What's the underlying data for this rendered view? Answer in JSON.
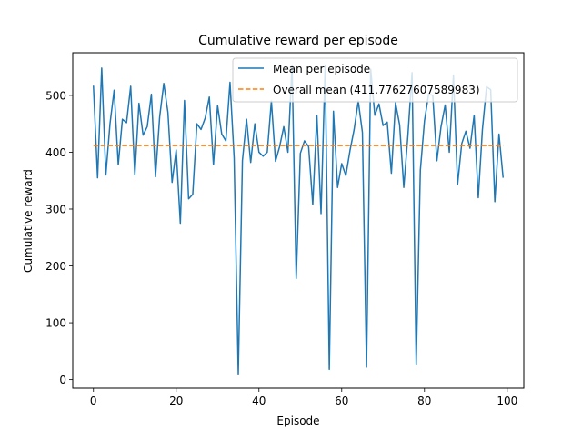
{
  "chart_data": {
    "type": "line",
    "title": "Cumulative reward per episode",
    "xlabel": "Episode",
    "ylabel": "Cumulative reward",
    "xlim": [
      -5,
      104
    ],
    "ylim": [
      -15,
      575
    ],
    "xticks": [
      0,
      20,
      40,
      60,
      80,
      100
    ],
    "yticks": [
      0,
      100,
      200,
      300,
      400,
      500
    ],
    "grid": false,
    "legend_position": "upper-right",
    "series": [
      {
        "name": "Mean per episode",
        "color": "#1f77b4",
        "style": "solid",
        "x": [
          0,
          1,
          2,
          3,
          4,
          5,
          6,
          7,
          8,
          9,
          10,
          11,
          12,
          13,
          14,
          15,
          16,
          17,
          18,
          19,
          20,
          21,
          22,
          23,
          24,
          25,
          26,
          27,
          28,
          29,
          30,
          31,
          32,
          33,
          34,
          35,
          36,
          37,
          38,
          39,
          40,
          41,
          42,
          43,
          44,
          45,
          46,
          47,
          48,
          49,
          50,
          51,
          52,
          53,
          54,
          55,
          56,
          57,
          58,
          59,
          60,
          61,
          62,
          63,
          64,
          65,
          66,
          67,
          68,
          69,
          70,
          71,
          72,
          73,
          74,
          75,
          76,
          77,
          78,
          79,
          80,
          81,
          82,
          83,
          84,
          85,
          86,
          87,
          88,
          89,
          90,
          91,
          92,
          93,
          94,
          95,
          96,
          97,
          98,
          99
        ],
        "y": [
          517,
          355,
          548,
          360,
          450,
          509,
          378,
          458,
          452,
          516,
          360,
          486,
          430,
          445,
          502,
          357,
          462,
          521,
          470,
          347,
          404,
          275,
          491,
          318,
          326,
          450,
          440,
          460,
          497,
          378,
          482,
          432,
          420,
          523,
          390,
          10,
          385,
          458,
          382,
          450,
          400,
          393,
          400,
          490,
          384,
          410,
          445,
          400,
          553,
          178,
          398,
          420,
          410,
          308,
          465,
          292,
          553,
          18,
          472,
          338,
          380,
          359,
          403,
          440,
          490,
          435,
          22,
          546,
          465,
          485,
          447,
          453,
          363,
          487,
          448,
          338,
          430,
          540,
          27,
          368,
          455,
          502,
          500,
          385,
          445,
          483,
          400,
          535,
          343,
          415,
          437,
          407,
          465,
          320,
          440,
          515,
          510,
          313,
          432,
          355
        ]
      },
      {
        "name": "Overall mean (411.77627607589983)",
        "color": "#ff7f0e",
        "style": "dashed",
        "x": [
          0,
          99
        ],
        "y": [
          411.77627607589983,
          411.77627607589983
        ]
      }
    ]
  }
}
